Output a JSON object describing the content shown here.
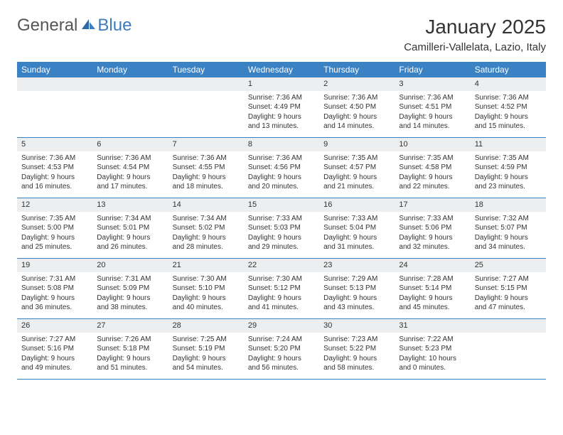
{
  "logo": {
    "text1": "General",
    "text2": "Blue"
  },
  "title": "January 2025",
  "location": "Camilleri-Vallelata, Lazio, Italy",
  "weekdays": [
    "Sunday",
    "Monday",
    "Tuesday",
    "Wednesday",
    "Thursday",
    "Friday",
    "Saturday"
  ],
  "colors": {
    "header_bg": "#3a82c4",
    "header_text": "#ffffff",
    "daynum_bg": "#eceeef",
    "border": "#3a82c4",
    "logo_blue": "#3a7dbf"
  },
  "days": [
    {
      "n": "",
      "sunrise": "",
      "sunset": "",
      "daylight": ""
    },
    {
      "n": "",
      "sunrise": "",
      "sunset": "",
      "daylight": ""
    },
    {
      "n": "",
      "sunrise": "",
      "sunset": "",
      "daylight": ""
    },
    {
      "n": "1",
      "sunrise": "Sunrise: 7:36 AM",
      "sunset": "Sunset: 4:49 PM",
      "daylight": "Daylight: 9 hours and 13 minutes."
    },
    {
      "n": "2",
      "sunrise": "Sunrise: 7:36 AM",
      "sunset": "Sunset: 4:50 PM",
      "daylight": "Daylight: 9 hours and 14 minutes."
    },
    {
      "n": "3",
      "sunrise": "Sunrise: 7:36 AM",
      "sunset": "Sunset: 4:51 PM",
      "daylight": "Daylight: 9 hours and 14 minutes."
    },
    {
      "n": "4",
      "sunrise": "Sunrise: 7:36 AM",
      "sunset": "Sunset: 4:52 PM",
      "daylight": "Daylight: 9 hours and 15 minutes."
    },
    {
      "n": "5",
      "sunrise": "Sunrise: 7:36 AM",
      "sunset": "Sunset: 4:53 PM",
      "daylight": "Daylight: 9 hours and 16 minutes."
    },
    {
      "n": "6",
      "sunrise": "Sunrise: 7:36 AM",
      "sunset": "Sunset: 4:54 PM",
      "daylight": "Daylight: 9 hours and 17 minutes."
    },
    {
      "n": "7",
      "sunrise": "Sunrise: 7:36 AM",
      "sunset": "Sunset: 4:55 PM",
      "daylight": "Daylight: 9 hours and 18 minutes."
    },
    {
      "n": "8",
      "sunrise": "Sunrise: 7:36 AM",
      "sunset": "Sunset: 4:56 PM",
      "daylight": "Daylight: 9 hours and 20 minutes."
    },
    {
      "n": "9",
      "sunrise": "Sunrise: 7:35 AM",
      "sunset": "Sunset: 4:57 PM",
      "daylight": "Daylight: 9 hours and 21 minutes."
    },
    {
      "n": "10",
      "sunrise": "Sunrise: 7:35 AM",
      "sunset": "Sunset: 4:58 PM",
      "daylight": "Daylight: 9 hours and 22 minutes."
    },
    {
      "n": "11",
      "sunrise": "Sunrise: 7:35 AM",
      "sunset": "Sunset: 4:59 PM",
      "daylight": "Daylight: 9 hours and 23 minutes."
    },
    {
      "n": "12",
      "sunrise": "Sunrise: 7:35 AM",
      "sunset": "Sunset: 5:00 PM",
      "daylight": "Daylight: 9 hours and 25 minutes."
    },
    {
      "n": "13",
      "sunrise": "Sunrise: 7:34 AM",
      "sunset": "Sunset: 5:01 PM",
      "daylight": "Daylight: 9 hours and 26 minutes."
    },
    {
      "n": "14",
      "sunrise": "Sunrise: 7:34 AM",
      "sunset": "Sunset: 5:02 PM",
      "daylight": "Daylight: 9 hours and 28 minutes."
    },
    {
      "n": "15",
      "sunrise": "Sunrise: 7:33 AM",
      "sunset": "Sunset: 5:03 PM",
      "daylight": "Daylight: 9 hours and 29 minutes."
    },
    {
      "n": "16",
      "sunrise": "Sunrise: 7:33 AM",
      "sunset": "Sunset: 5:04 PM",
      "daylight": "Daylight: 9 hours and 31 minutes."
    },
    {
      "n": "17",
      "sunrise": "Sunrise: 7:33 AM",
      "sunset": "Sunset: 5:06 PM",
      "daylight": "Daylight: 9 hours and 32 minutes."
    },
    {
      "n": "18",
      "sunrise": "Sunrise: 7:32 AM",
      "sunset": "Sunset: 5:07 PM",
      "daylight": "Daylight: 9 hours and 34 minutes."
    },
    {
      "n": "19",
      "sunrise": "Sunrise: 7:31 AM",
      "sunset": "Sunset: 5:08 PM",
      "daylight": "Daylight: 9 hours and 36 minutes."
    },
    {
      "n": "20",
      "sunrise": "Sunrise: 7:31 AM",
      "sunset": "Sunset: 5:09 PM",
      "daylight": "Daylight: 9 hours and 38 minutes."
    },
    {
      "n": "21",
      "sunrise": "Sunrise: 7:30 AM",
      "sunset": "Sunset: 5:10 PM",
      "daylight": "Daylight: 9 hours and 40 minutes."
    },
    {
      "n": "22",
      "sunrise": "Sunrise: 7:30 AM",
      "sunset": "Sunset: 5:12 PM",
      "daylight": "Daylight: 9 hours and 41 minutes."
    },
    {
      "n": "23",
      "sunrise": "Sunrise: 7:29 AM",
      "sunset": "Sunset: 5:13 PM",
      "daylight": "Daylight: 9 hours and 43 minutes."
    },
    {
      "n": "24",
      "sunrise": "Sunrise: 7:28 AM",
      "sunset": "Sunset: 5:14 PM",
      "daylight": "Daylight: 9 hours and 45 minutes."
    },
    {
      "n": "25",
      "sunrise": "Sunrise: 7:27 AM",
      "sunset": "Sunset: 5:15 PM",
      "daylight": "Daylight: 9 hours and 47 minutes."
    },
    {
      "n": "26",
      "sunrise": "Sunrise: 7:27 AM",
      "sunset": "Sunset: 5:16 PM",
      "daylight": "Daylight: 9 hours and 49 minutes."
    },
    {
      "n": "27",
      "sunrise": "Sunrise: 7:26 AM",
      "sunset": "Sunset: 5:18 PM",
      "daylight": "Daylight: 9 hours and 51 minutes."
    },
    {
      "n": "28",
      "sunrise": "Sunrise: 7:25 AM",
      "sunset": "Sunset: 5:19 PM",
      "daylight": "Daylight: 9 hours and 54 minutes."
    },
    {
      "n": "29",
      "sunrise": "Sunrise: 7:24 AM",
      "sunset": "Sunset: 5:20 PM",
      "daylight": "Daylight: 9 hours and 56 minutes."
    },
    {
      "n": "30",
      "sunrise": "Sunrise: 7:23 AM",
      "sunset": "Sunset: 5:22 PM",
      "daylight": "Daylight: 9 hours and 58 minutes."
    },
    {
      "n": "31",
      "sunrise": "Sunrise: 7:22 AM",
      "sunset": "Sunset: 5:23 PM",
      "daylight": "Daylight: 10 hours and 0 minutes."
    },
    {
      "n": "",
      "sunrise": "",
      "sunset": "",
      "daylight": ""
    }
  ]
}
